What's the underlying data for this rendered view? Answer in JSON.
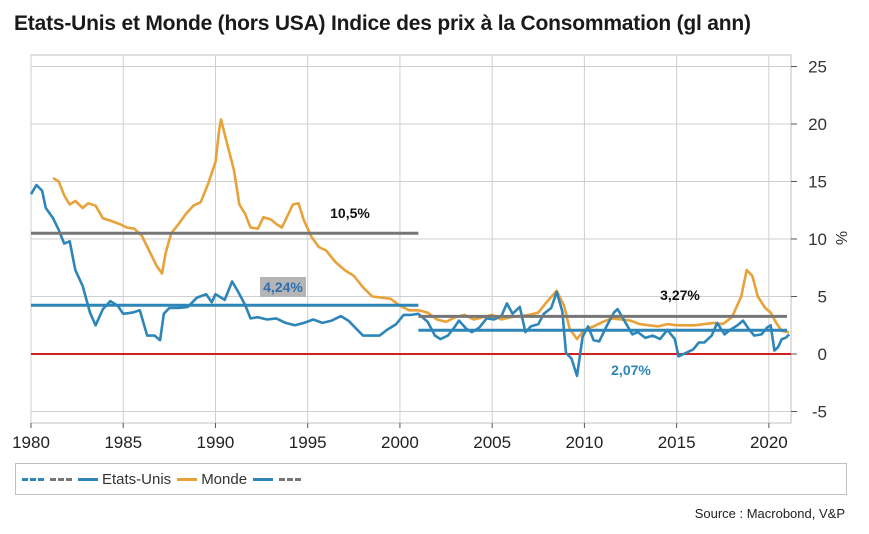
{
  "title": "Etats-Unis et Monde (hors USA) Indice des prix à la Consommation (gl ann)",
  "source": "Source : Macrobond, V&P",
  "chart_data": {
    "type": "line",
    "xlim": [
      1980,
      2021.2
    ],
    "ylim": [
      -6,
      26
    ],
    "xticks": [
      1980,
      1985,
      1990,
      1995,
      2000,
      2005,
      2010,
      2015,
      2020
    ],
    "yticks": [
      -5,
      0,
      5,
      10,
      15,
      20,
      25
    ],
    "ylabel": "%",
    "colors": {
      "us": "#2e86b8",
      "world": "#e8a23a",
      "avg": "#767676",
      "zero": "#d41f1f",
      "grid": "#cfcfcf"
    },
    "series": [
      {
        "name": "Etats-Unis",
        "color": "#2e86b8",
        "points": [
          [
            1980,
            13.9
          ],
          [
            1980.3,
            14.7
          ],
          [
            1980.6,
            14.2
          ],
          [
            1980.8,
            12.7
          ],
          [
            1981.2,
            11.8
          ],
          [
            1981.5,
            10.8
          ],
          [
            1981.8,
            9.6
          ],
          [
            1982.1,
            9.8
          ],
          [
            1982.4,
            7.3
          ],
          [
            1982.8,
            5.9
          ],
          [
            1983.2,
            3.6
          ],
          [
            1983.5,
            2.5
          ],
          [
            1983.9,
            3.9
          ],
          [
            1984.3,
            4.6
          ],
          [
            1984.7,
            4.2
          ],
          [
            1985,
            3.5
          ],
          [
            1985.5,
            3.6
          ],
          [
            1985.9,
            3.8
          ],
          [
            1986.3,
            1.6
          ],
          [
            1986.7,
            1.6
          ],
          [
            1987,
            1.2
          ],
          [
            1987.2,
            3.5
          ],
          [
            1987.5,
            4.0
          ],
          [
            1988,
            4.0
          ],
          [
            1988.5,
            4.1
          ],
          [
            1989,
            4.9
          ],
          [
            1989.5,
            5.2
          ],
          [
            1989.8,
            4.5
          ],
          [
            1990,
            5.2
          ],
          [
            1990.5,
            4.7
          ],
          [
            1990.9,
            6.3
          ],
          [
            1991.2,
            5.5
          ],
          [
            1991.6,
            4.3
          ],
          [
            1991.9,
            3.1
          ],
          [
            1992.3,
            3.2
          ],
          [
            1992.8,
            3.0
          ],
          [
            1993.3,
            3.1
          ],
          [
            1993.8,
            2.7
          ],
          [
            1994.3,
            2.5
          ],
          [
            1994.8,
            2.7
          ],
          [
            1995.3,
            3.0
          ],
          [
            1995.8,
            2.7
          ],
          [
            1996.3,
            2.9
          ],
          [
            1996.8,
            3.3
          ],
          [
            1997.2,
            2.9
          ],
          [
            1997.7,
            2.1
          ],
          [
            1998,
            1.6
          ],
          [
            1998.5,
            1.6
          ],
          [
            1998.9,
            1.6
          ],
          [
            1999.3,
            2.1
          ],
          [
            1999.8,
            2.6
          ],
          [
            2000.2,
            3.4
          ],
          [
            2000.6,
            3.4
          ],
          [
            2001,
            3.5
          ],
          [
            2001.5,
            2.8
          ],
          [
            2001.9,
            1.6
          ],
          [
            2002.2,
            1.3
          ],
          [
            2002.6,
            1.6
          ],
          [
            2002.9,
            2.2
          ],
          [
            2003.2,
            2.9
          ],
          [
            2003.6,
            2.2
          ],
          [
            2003.9,
            1.9
          ],
          [
            2004.3,
            2.3
          ],
          [
            2004.7,
            3.1
          ],
          [
            2005.1,
            3.0
          ],
          [
            2005.5,
            3.3
          ],
          [
            2005.8,
            4.4
          ],
          [
            2006.1,
            3.5
          ],
          [
            2006.5,
            4.1
          ],
          [
            2006.8,
            1.9
          ],
          [
            2007.1,
            2.4
          ],
          [
            2007.5,
            2.6
          ],
          [
            2007.8,
            3.5
          ],
          [
            2008.2,
            4.0
          ],
          [
            2008.5,
            5.4
          ],
          [
            2008.8,
            3.7
          ],
          [
            2009.0,
            0.1
          ],
          [
            2009.3,
            -0.4
          ],
          [
            2009.6,
            -1.9
          ],
          [
            2009.9,
            1.5
          ],
          [
            2010.2,
            2.4
          ],
          [
            2010.5,
            1.2
          ],
          [
            2010.8,
            1.1
          ],
          [
            2011.2,
            2.4
          ],
          [
            2011.6,
            3.6
          ],
          [
            2011.8,
            3.9
          ],
          [
            2012.2,
            2.8
          ],
          [
            2012.6,
            1.7
          ],
          [
            2012.9,
            1.9
          ],
          [
            2013.3,
            1.4
          ],
          [
            2013.7,
            1.6
          ],
          [
            2014.1,
            1.3
          ],
          [
            2014.5,
            2.1
          ],
          [
            2014.9,
            1.3
          ],
          [
            2015.1,
            -0.2
          ],
          [
            2015.5,
            0.1
          ],
          [
            2015.9,
            0.4
          ],
          [
            2016.2,
            1.0
          ],
          [
            2016.5,
            1.0
          ],
          [
            2016.9,
            1.6
          ],
          [
            2017.2,
            2.7
          ],
          [
            2017.6,
            1.7
          ],
          [
            2017.9,
            2.1
          ],
          [
            2018.3,
            2.5
          ],
          [
            2018.6,
            2.9
          ],
          [
            2018.9,
            2.2
          ],
          [
            2019.2,
            1.6
          ],
          [
            2019.6,
            1.7
          ],
          [
            2019.9,
            2.3
          ],
          [
            2020.1,
            2.5
          ],
          [
            2020.3,
            0.3
          ],
          [
            2020.5,
            0.6
          ],
          [
            2020.7,
            1.3
          ],
          [
            2020.9,
            1.4
          ],
          [
            2021.1,
            1.7
          ]
        ]
      },
      {
        "name": "Monde",
        "color": "#e8a23a",
        "points": [
          [
            1981.2,
            15.3
          ],
          [
            1981.5,
            15.0
          ],
          [
            1981.8,
            13.8
          ],
          [
            1982.1,
            13.0
          ],
          [
            1982.4,
            13.3
          ],
          [
            1982.8,
            12.7
          ],
          [
            1983.1,
            13.1
          ],
          [
            1983.5,
            12.9
          ],
          [
            1983.9,
            11.8
          ],
          [
            1984.3,
            11.6
          ],
          [
            1984.8,
            11.3
          ],
          [
            1985.2,
            11.0
          ],
          [
            1985.6,
            10.9
          ],
          [
            1986,
            10.3
          ],
          [
            1986.4,
            9.0
          ],
          [
            1986.8,
            7.7
          ],
          [
            1987.1,
            7.0
          ],
          [
            1987.3,
            8.8
          ],
          [
            1987.6,
            10.5
          ],
          [
            1988,
            11.3
          ],
          [
            1988.4,
            12.2
          ],
          [
            1988.8,
            12.9
          ],
          [
            1989.2,
            13.2
          ],
          [
            1989.6,
            14.8
          ],
          [
            1990,
            16.7
          ],
          [
            1990.2,
            19.5
          ],
          [
            1990.3,
            20.4
          ],
          [
            1990.6,
            18.5
          ],
          [
            1991,
            16.0
          ],
          [
            1991.3,
            13.0
          ],
          [
            1991.6,
            12.2
          ],
          [
            1991.9,
            11.0
          ],
          [
            1992.3,
            10.9
          ],
          [
            1992.6,
            11.9
          ],
          [
            1993,
            11.7
          ],
          [
            1993.3,
            11.3
          ],
          [
            1993.6,
            11.0
          ],
          [
            1993.9,
            12.0
          ],
          [
            1994.2,
            13.0
          ],
          [
            1994.5,
            13.1
          ],
          [
            1994.8,
            11.6
          ],
          [
            1995.2,
            10.2
          ],
          [
            1995.6,
            9.3
          ],
          [
            1996,
            9.0
          ],
          [
            1996.5,
            8.0
          ],
          [
            1997,
            7.3
          ],
          [
            1997.5,
            6.8
          ],
          [
            1998,
            5.8
          ],
          [
            1998.5,
            5.0
          ],
          [
            1999,
            4.9
          ],
          [
            1999.5,
            4.8
          ],
          [
            2000,
            4.2
          ],
          [
            2000.5,
            3.8
          ],
          [
            2001,
            3.8
          ],
          [
            2001.5,
            3.6
          ],
          [
            2002,
            3.0
          ],
          [
            2002.5,
            2.8
          ],
          [
            2003,
            3.2
          ],
          [
            2003.5,
            3.4
          ],
          [
            2004,
            3.0
          ],
          [
            2004.5,
            3.2
          ],
          [
            2005,
            3.4
          ],
          [
            2005.5,
            3.0
          ],
          [
            2006,
            3.2
          ],
          [
            2006.5,
            3.3
          ],
          [
            2007,
            3.4
          ],
          [
            2007.5,
            3.6
          ],
          [
            2008,
            4.6
          ],
          [
            2008.5,
            5.5
          ],
          [
            2008.9,
            4.2
          ],
          [
            2009.2,
            2.2
          ],
          [
            2009.6,
            1.3
          ],
          [
            2010,
            2.1
          ],
          [
            2010.5,
            2.4
          ],
          [
            2011,
            2.8
          ],
          [
            2011.5,
            3.1
          ],
          [
            2012,
            3.0
          ],
          [
            2012.5,
            2.9
          ],
          [
            2013,
            2.6
          ],
          [
            2013.5,
            2.5
          ],
          [
            2014,
            2.4
          ],
          [
            2014.5,
            2.6
          ],
          [
            2015,
            2.5
          ],
          [
            2015.5,
            2.5
          ],
          [
            2016,
            2.5
          ],
          [
            2016.5,
            2.6
          ],
          [
            2017,
            2.7
          ],
          [
            2017.5,
            2.6
          ],
          [
            2018,
            3.2
          ],
          [
            2018.5,
            5.0
          ],
          [
            2018.8,
            7.3
          ],
          [
            2019.1,
            6.8
          ],
          [
            2019.4,
            5.0
          ],
          [
            2019.8,
            4.0
          ],
          [
            2020.1,
            3.6
          ],
          [
            2020.4,
            2.7
          ],
          [
            2020.7,
            2.0
          ],
          [
            2021.1,
            1.9
          ]
        ]
      }
    ],
    "averages": [
      {
        "series": "Monde",
        "x0": 1980,
        "x1": 2001,
        "value": 10.5,
        "label": "10,5%",
        "color": "#767676"
      },
      {
        "series": "Etats-Unis",
        "x0": 1980,
        "x1": 2001,
        "value": 4.24,
        "label": "4,24%",
        "color": "#2e86b8"
      },
      {
        "series": "Monde",
        "x0": 2001,
        "x1": 2021.2,
        "value": 3.27,
        "label": "3,27%",
        "color": "#767676"
      },
      {
        "series": "Etats-Unis",
        "x0": 2001,
        "x1": 2021.2,
        "value": 2.07,
        "label": "2,07%",
        "color": "#2e86b8"
      }
    ],
    "legend": [
      {
        "label": "",
        "color": "#2e86b8",
        "style": "dash"
      },
      {
        "label": "",
        "color": "#767676",
        "style": "dash"
      },
      {
        "label": "Etats-Unis",
        "color": "#2e86b8",
        "style": "solid"
      },
      {
        "label": "Monde",
        "color": "#e8a23a",
        "style": "solid"
      },
      {
        "label": "",
        "color": "#2e86b8",
        "style": "solid"
      },
      {
        "label": "",
        "color": "#767676",
        "style": "dash"
      }
    ]
  }
}
